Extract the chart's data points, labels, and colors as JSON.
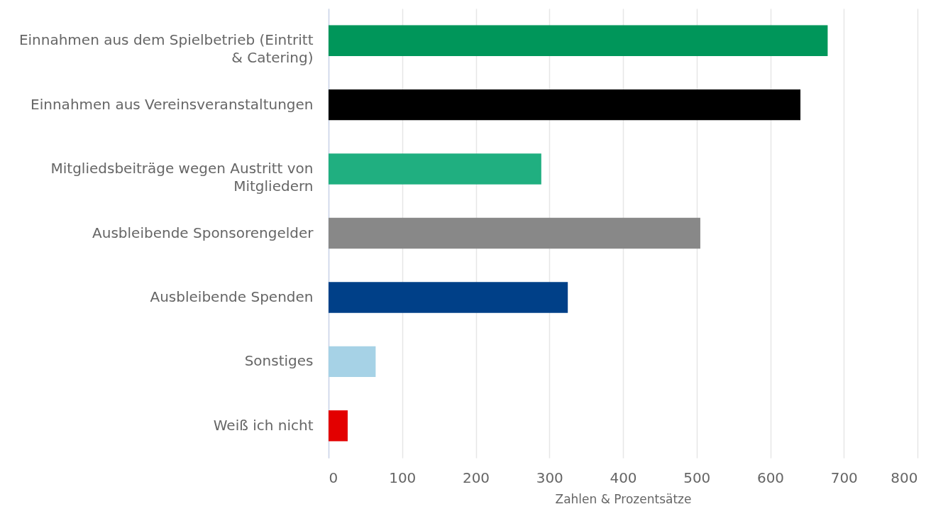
{
  "chart_data": {
    "type": "bar",
    "orientation": "horizontal",
    "categories": [
      "Einnahmen aus dem Spielbetrieb (Eintritt & Catering)",
      "Einnahmen aus Vereinsveranstaltungen",
      "Mitgliedsbeiträge wegen Austritt von Mitgliedern",
      "Ausbleibende Sponsorengelder",
      "Ausbleibende Spenden",
      "Sonstiges",
      "Weiß ich nicht"
    ],
    "values": [
      678,
      641,
      289,
      505,
      325,
      64,
      26
    ],
    "colors": [
      "#00965a",
      "#000000",
      "#20af80",
      "#888888",
      "#004088",
      "#a6d2e6",
      "#e30000"
    ],
    "xlabel": "Zahlen & Prozentsätze",
    "xlim": [
      0,
      800
    ],
    "xticks": [
      0,
      100,
      200,
      300,
      400,
      500,
      600,
      700,
      800
    ],
    "grid": "x"
  }
}
